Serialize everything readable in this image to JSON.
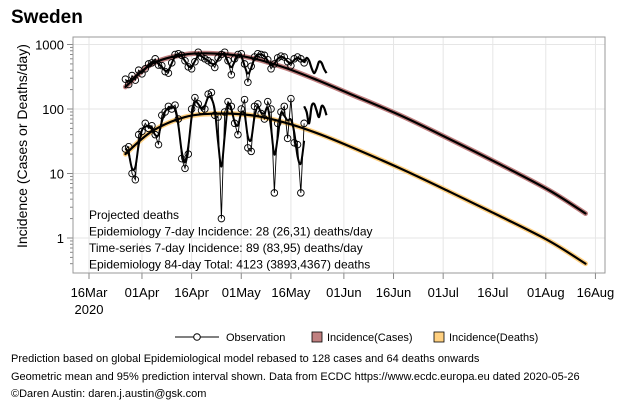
{
  "chart_data": {
    "type": "line",
    "title": "Sweden",
    "xlabel": "",
    "ylabel": "Incidence (Cases or Deaths/day)",
    "yscale": "log",
    "ylim": [
      0.35,
      1250
    ],
    "yticks": [
      1,
      10,
      100,
      1000
    ],
    "ytick_labels": [
      "1",
      "10",
      "100",
      "1000"
    ],
    "xlim": [
      "2020-03-12",
      "2020-08-19"
    ],
    "xticks": [
      "2020-03-16",
      "2020-04-01",
      "2020-04-16",
      "2020-05-01",
      "2020-05-16",
      "2020-06-01",
      "2020-06-16",
      "2020-07-01",
      "2020-07-16",
      "2020-08-01",
      "2020-08-16"
    ],
    "xtick_labels": [
      "16Mar",
      "01Apr",
      "16Apr",
      "01May",
      "16May",
      "01Jun",
      "16Jun",
      "01Jul",
      "16Jul",
      "01Aug",
      "16Aug"
    ],
    "xtick_sublabel": "2020",
    "grid": true,
    "legend_position": "bottom",
    "legend": [
      {
        "label": "Observation",
        "kind": "line-marker",
        "color": "#000000"
      },
      {
        "label": "Incidence(Cases)",
        "kind": "band",
        "color": "#c08080"
      },
      {
        "label": "Incidence(Deaths)",
        "kind": "band",
        "color": "#ffd080"
      }
    ],
    "observation_start": "2020-03-27",
    "series": [
      {
        "name": "Observed cases",
        "kind": "observation",
        "values": [
          290,
          240,
          330,
          280,
          400,
          350,
          420,
          500,
          520,
          600,
          480,
          470,
          380,
          360,
          520,
          700,
          720,
          680,
          560,
          450,
          420,
          540,
          760,
          640,
          600,
          560,
          520,
          440,
          620,
          700,
          760,
          560,
          340,
          600,
          700,
          720,
          500,
          260,
          460,
          640,
          720,
          700,
          680,
          580,
          420,
          500,
          620,
          660,
          640,
          540,
          470,
          600,
          640,
          600,
          520
        ]
      },
      {
        "name": "Observed deaths",
        "kind": "observation",
        "values": [
          24,
          26,
          10,
          8,
          40,
          45,
          60,
          50,
          55,
          40,
          28,
          80,
          90,
          110,
          100,
          115,
          70,
          17,
          12,
          20,
          100,
          150,
          120,
          95,
          100,
          170,
          180,
          80,
          75,
          2,
          90,
          130,
          110,
          60,
          40,
          100,
          140,
          25,
          22,
          110,
          120,
          85,
          70,
          130,
          100,
          5,
          60,
          90,
          110,
          35,
          145,
          30,
          28,
          5,
          60
        ]
      },
      {
        "name": "Time-series projection cases",
        "kind": "wiggly-projection",
        "start": "2020-05-20",
        "values": [
          520,
          620,
          560,
          430,
          360,
          420,
          540,
          520,
          420,
          360
        ]
      },
      {
        "name": "Time-series projection deaths",
        "kind": "wiggly-projection",
        "start": "2020-05-20",
        "values": [
          110,
          90,
          60,
          110,
          120,
          95,
          75,
          110,
          105,
          80
        ]
      },
      {
        "name": "Incidence(Cases)",
        "kind": "model-curve",
        "color": "#c08080",
        "points": [
          [
            "2020-03-27",
            220
          ],
          [
            "2020-04-04",
            500
          ],
          [
            "2020-04-14",
            700
          ],
          [
            "2020-04-24",
            720
          ],
          [
            "2020-05-04",
            620
          ],
          [
            "2020-05-14",
            440
          ],
          [
            "2020-05-24",
            280
          ],
          [
            "2020-06-03",
            170
          ],
          [
            "2020-06-18",
            80
          ],
          [
            "2020-07-03",
            34
          ],
          [
            "2020-07-18",
            14
          ],
          [
            "2020-08-02",
            5.5
          ],
          [
            "2020-08-13",
            2.4
          ]
        ]
      },
      {
        "name": "Incidence(Deaths)",
        "kind": "model-curve",
        "color": "#ffd080",
        "points": [
          [
            "2020-03-27",
            20
          ],
          [
            "2020-04-04",
            45
          ],
          [
            "2020-04-14",
            75
          ],
          [
            "2020-04-24",
            85
          ],
          [
            "2020-05-04",
            80
          ],
          [
            "2020-05-14",
            62
          ],
          [
            "2020-05-24",
            42
          ],
          [
            "2020-06-03",
            26
          ],
          [
            "2020-06-18",
            12
          ],
          [
            "2020-07-03",
            5.2
          ],
          [
            "2020-07-18",
            2.2
          ],
          [
            "2020-08-02",
            0.9
          ],
          [
            "2020-08-13",
            0.4
          ]
        ]
      }
    ],
    "annotations": [
      "Projected deaths",
      "Epidemiology 7-day Incidence:  28 (26,31) deaths/day",
      "Time-series 7-day Incidence:  89 (83,95) deaths/day",
      "Epidemiology 84-day Total:  4123 (3893,4367) deaths"
    ]
  },
  "footnotes": [
    "Prediction based on global Epidemiological model rebased to 128 cases and 64 deaths onwards",
    "Geometric mean and 95% prediction interval shown. Data from ECDC https://www.ecdc.europa.eu dated 2020-05-26",
    "©Daren Austin: daren.j.austin@gsk.com"
  ]
}
